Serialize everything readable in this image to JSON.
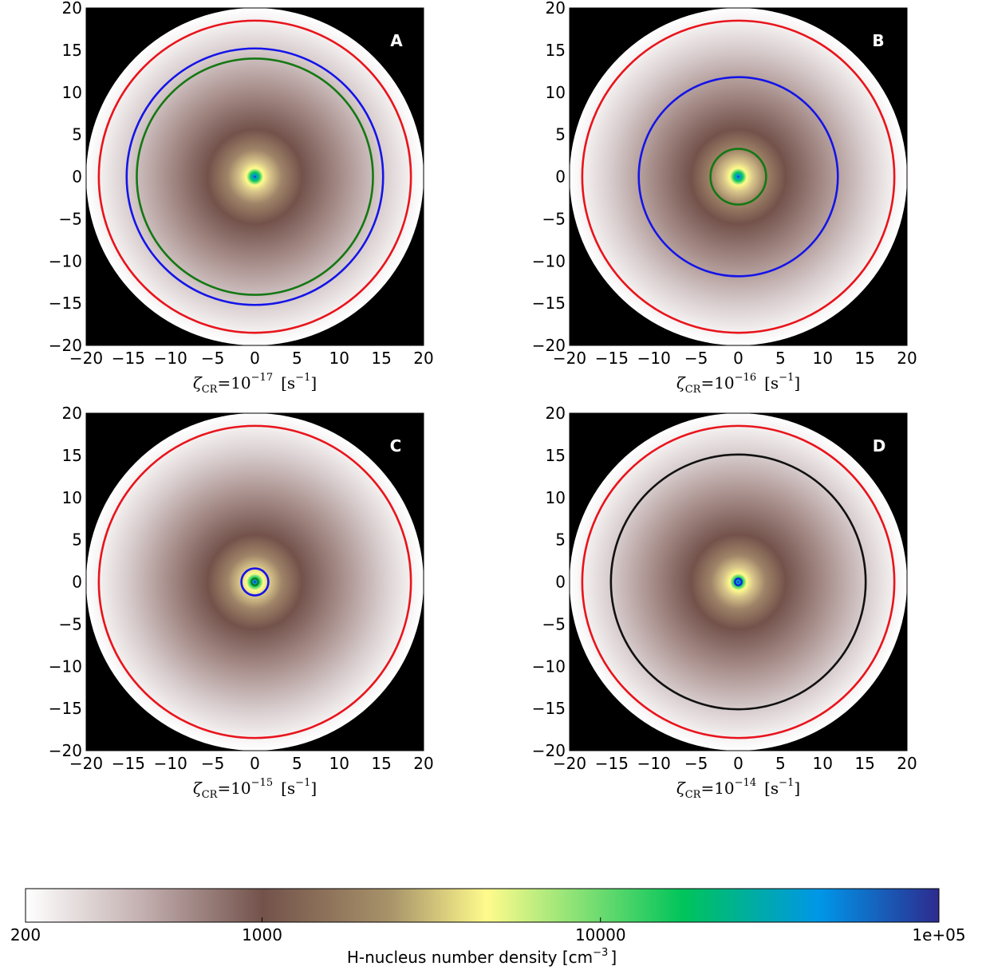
{
  "colorbar": {
    "label_prefix": "H-nucleus number density [cm",
    "label_exp": "−3",
    "label_suffix": "]",
    "ticks": [
      "200",
      "1000",
      "10000",
      "1e+05"
    ],
    "stops": [
      "#ffffff",
      "#c2aeae",
      "#73524b",
      "#a8936a",
      "#fffb8c",
      "#00c45a",
      "#0096e8",
      "#2d2b8e"
    ]
  },
  "chart_data": [
    {
      "type": "heatmap",
      "panel": "A",
      "xlim": [
        -20,
        20
      ],
      "ylim": [
        -20,
        20
      ],
      "xticks": [
        "−20",
        "−15",
        "−10",
        "−5",
        "0",
        "5",
        "10",
        "15",
        "20"
      ],
      "yticks": [
        "20",
        "15",
        "10",
        "5",
        "0",
        "−5",
        "−10",
        "−15",
        "−20"
      ],
      "xlabel": {
        "zeta": "ζ",
        "zeta_sub": "CR",
        "eq": "=10",
        "exp": "−17",
        "unit_open": "[s",
        "unit_exp": "−1",
        "unit_close": "]"
      },
      "contours": [
        {
          "color": "#e8141c",
          "radius": 18.5
        },
        {
          "color": "#1414e8",
          "radius": 15.2
        },
        {
          "color": "#147814",
          "radius": 14.0
        }
      ]
    },
    {
      "type": "heatmap",
      "panel": "B",
      "xlim": [
        -20,
        20
      ],
      "ylim": [
        -20,
        20
      ],
      "xticks": [
        "−20",
        "−15",
        "−10",
        "−5",
        "0",
        "5",
        "10",
        "15",
        "20"
      ],
      "yticks": [
        "20",
        "15",
        "10",
        "5",
        "0",
        "−5",
        "−10",
        "−15",
        "−20"
      ],
      "xlabel": {
        "zeta": "ζ",
        "zeta_sub": "CR",
        "eq": "=10",
        "exp": "−16",
        "unit_open": "[s",
        "unit_exp": "−1",
        "unit_close": "]"
      },
      "contours": [
        {
          "color": "#e8141c",
          "radius": 18.5
        },
        {
          "color": "#1414e8",
          "radius": 11.8
        },
        {
          "color": "#147814",
          "radius": 3.3
        }
      ]
    },
    {
      "type": "heatmap",
      "panel": "C",
      "xlim": [
        -20,
        20
      ],
      "ylim": [
        -20,
        20
      ],
      "xticks": [
        "−20",
        "−15",
        "−10",
        "−5",
        "0",
        "5",
        "10",
        "15",
        "20"
      ],
      "yticks": [
        "20",
        "15",
        "10",
        "5",
        "0",
        "−5",
        "−10",
        "−15",
        "−20"
      ],
      "xlabel": {
        "zeta": "ζ",
        "zeta_sub": "CR",
        "eq": "=10",
        "exp": "−15",
        "unit_open": "[s",
        "unit_exp": "−1",
        "unit_close": "]"
      },
      "contours": [
        {
          "color": "#e8141c",
          "radius": 18.5
        },
        {
          "color": "#1414e8",
          "radius": 1.6
        },
        {
          "color": "#147814",
          "radius": 0.4
        }
      ]
    },
    {
      "type": "heatmap",
      "panel": "D",
      "xlim": [
        -20,
        20
      ],
      "ylim": [
        -20,
        20
      ],
      "xticks": [
        "−20",
        "−15",
        "−10",
        "−5",
        "0",
        "5",
        "10",
        "15",
        "20"
      ],
      "yticks": [
        "20",
        "15",
        "10",
        "5",
        "0",
        "−5",
        "−10",
        "−15",
        "−20"
      ],
      "xlabel": {
        "zeta": "ζ",
        "zeta_sub": "CR",
        "eq": "=10",
        "exp": "−14",
        "unit_open": "[s",
        "unit_exp": "−1",
        "unit_close": "]"
      },
      "contours": [
        {
          "color": "#e8141c",
          "radius": 18.5
        },
        {
          "color": "#111111",
          "radius": 15.1
        },
        {
          "color": "#1414e8",
          "radius": 0.4
        }
      ]
    }
  ]
}
